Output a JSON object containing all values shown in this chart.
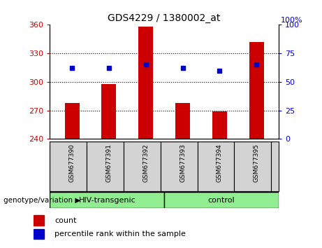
{
  "title": "GDS4229 / 1380002_at",
  "categories": [
    "GSM677390",
    "GSM677391",
    "GSM677392",
    "GSM677393",
    "GSM677394",
    "GSM677395"
  ],
  "bar_values": [
    278,
    298,
    358,
    278,
    269,
    342
  ],
  "percentile_values": [
    62,
    62,
    65,
    62,
    60,
    65
  ],
  "ylim_left": [
    240,
    360
  ],
  "ylim_right": [
    0,
    100
  ],
  "yticks_left": [
    240,
    270,
    300,
    330,
    360
  ],
  "yticks_right": [
    0,
    25,
    50,
    75,
    100
  ],
  "grid_values": [
    270,
    300,
    330
  ],
  "bar_color": "#cc0000",
  "dot_color": "#0000cc",
  "bar_bottom": 240,
  "group1_label": "HIV-transgenic",
  "group2_label": "control",
  "group1_color": "#90ee90",
  "group2_color": "#90ee90",
  "legend_count_label": "count",
  "legend_percentile_label": "percentile rank within the sample",
  "xlabel_group": "genotype/variation",
  "tick_label_color_left": "#cc0000",
  "tick_label_color_right": "#0000cc",
  "background_color": "#ffffff",
  "plot_bg_color": "#ffffff",
  "xlabel_area_color": "#d3d3d3",
  "title_fontsize": 10,
  "tick_fontsize": 8,
  "bar_width": 0.4
}
